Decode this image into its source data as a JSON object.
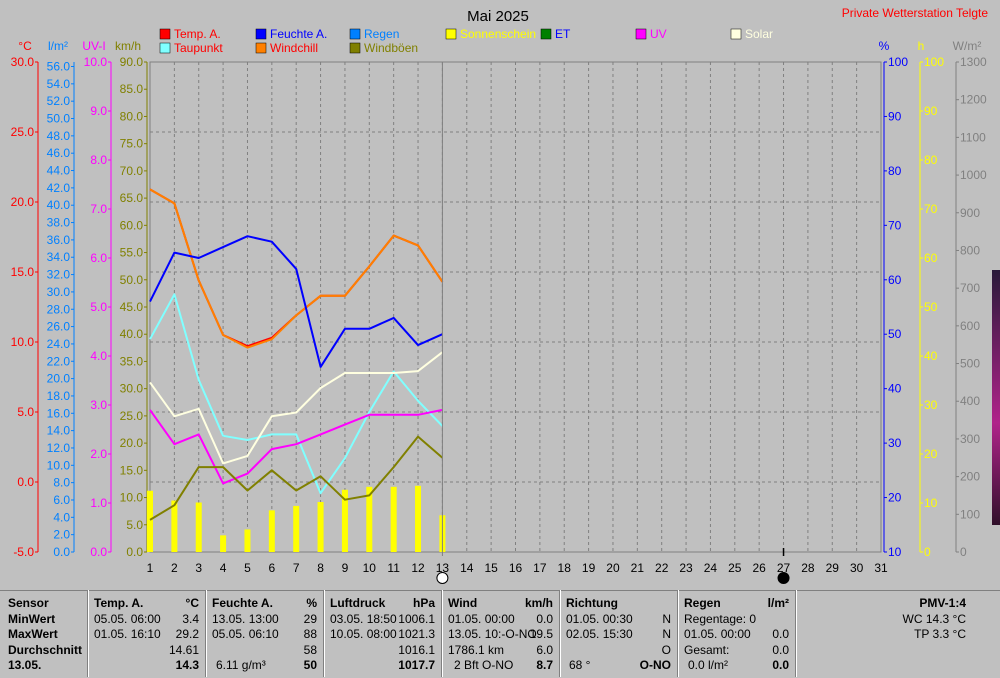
{
  "title": "Mai 2025",
  "station": "Private Wetterstation Telgte",
  "legend": [
    {
      "label": "Temp. A.",
      "color": "#ff0000",
      "text_color": "#ff0000"
    },
    {
      "label": "Feuchte A.",
      "color": "#0000ff",
      "text_color": "#0000ff"
    },
    {
      "label": "Regen",
      "color": "#0080ff",
      "text_color": "#0080ff"
    },
    {
      "label": "Sonnenschein",
      "color": "#ffff00",
      "text_color": "#ffff00"
    },
    {
      "label": "ET",
      "color": "#008000",
      "text_color": "#0000ff"
    },
    {
      "label": "UV",
      "color": "#ff00ff",
      "text_color": "#ff00ff"
    },
    {
      "label": "Solar",
      "color": "#ffffe0",
      "text_color": "#ffffe0"
    },
    {
      "label": "Taupunkt",
      "color": "#80ffff",
      "text_color": "#ff0000"
    },
    {
      "label": "Windchill",
      "color": "#ff8000",
      "text_color": "#ff0000"
    },
    {
      "label": "Windböen",
      "color": "#808000",
      "text_color": "#808000"
    }
  ],
  "axes": {
    "temp": {
      "unit": "°C",
      "color": "#ff0000",
      "ticks": [
        "30.0",
        "25.0",
        "20.0",
        "15.0",
        "10.0",
        "5.0",
        "0.0",
        "-5.0"
      ]
    },
    "rain": {
      "unit": "l/m²",
      "color": "#0080ff",
      "ticks": [
        "56.0",
        "54.0",
        "52.0",
        "50.0",
        "48.0",
        "46.0",
        "44.0",
        "42.0",
        "40.0",
        "38.0",
        "36.0",
        "34.0",
        "32.0",
        "30.0",
        "28.0",
        "26.0",
        "24.0",
        "22.0",
        "20.0",
        "18.0",
        "16.0",
        "14.0",
        "12.0",
        "10.0",
        "8.0",
        "6.0",
        "4.0",
        "2.0",
        "0.0"
      ]
    },
    "uv": {
      "unit": "UV-I",
      "color": "#ff00ff",
      "ticks": [
        "10.0",
        "9.0",
        "8.0",
        "7.0",
        "6.0",
        "5.0",
        "4.0",
        "3.0",
        "2.0",
        "1.0",
        "0.0"
      ]
    },
    "wind": {
      "unit": "km/h",
      "color": "#808000",
      "ticks": [
        "90.0",
        "85.0",
        "80.0",
        "75.0",
        "70.0",
        "65.0",
        "60.0",
        "55.0",
        "50.0",
        "45.0",
        "40.0",
        "35.0",
        "30.0",
        "25.0",
        "20.0",
        "15.0",
        "10.0",
        "5.0",
        "0.0"
      ]
    },
    "hum": {
      "unit": "%",
      "color": "#0000ff",
      "ticks": [
        "100",
        "90",
        "80",
        "70",
        "60",
        "50",
        "40",
        "30",
        "20",
        "10"
      ]
    },
    "sun": {
      "unit": "h",
      "color": "#ffff00",
      "ticks": [
        "100",
        "90",
        "80",
        "70",
        "60",
        "50",
        "40",
        "30",
        "20",
        "10",
        "0"
      ]
    },
    "solar": {
      "unit": "W/m²",
      "color": "#808080",
      "ticks": [
        "1300",
        "1200",
        "1100",
        "1000",
        "900",
        "800",
        "700",
        "600",
        "500",
        "400",
        "300",
        "200",
        "100",
        "0"
      ]
    }
  },
  "chart_data": {
    "type": "line",
    "x": [
      1,
      2,
      3,
      4,
      5,
      6,
      7,
      8,
      9,
      10,
      11,
      12,
      13
    ],
    "xlim": [
      1,
      31
    ],
    "x_ticks": [
      "1",
      "2",
      "3",
      "4",
      "5",
      "6",
      "7",
      "8",
      "9",
      "10",
      "11",
      "12",
      "13",
      "14",
      "15",
      "16",
      "17",
      "18",
      "19",
      "20",
      "21",
      "22",
      "23",
      "24",
      "25",
      "26",
      "27",
      "28",
      "29",
      "30",
      "31"
    ],
    "series": [
      {
        "name": "Temp. A.",
        "axis": "temp",
        "ylim": [
          -5,
          30
        ],
        "color": "#ff0000",
        "values": [
          20.9,
          19.9,
          14.4,
          10.5,
          9.7,
          10.3,
          11.9,
          13.3,
          13.3,
          15.4,
          17.6,
          16.9,
          14.3
        ]
      },
      {
        "name": "Windchill",
        "axis": "temp",
        "ylim": [
          -5,
          30
        ],
        "color": "#ff8000",
        "values": [
          20.9,
          19.9,
          14.4,
          10.5,
          9.6,
          10.2,
          11.9,
          13.3,
          13.3,
          15.4,
          17.6,
          16.9,
          14.3
        ]
      },
      {
        "name": "Feuchte A.",
        "axis": "hum",
        "ylim": [
          10,
          100
        ],
        "color": "#0000ff",
        "values": [
          56,
          65,
          64,
          66,
          68,
          67,
          62,
          44,
          51,
          51,
          53,
          48,
          50
        ]
      },
      {
        "name": "Taupunkt",
        "axis": "temp",
        "ylim": [
          -5,
          30
        ],
        "color": "#80ffff",
        "values": [
          10.2,
          13.4,
          7.3,
          3.3,
          3.0,
          3.4,
          3.4,
          -0.8,
          1.7,
          5.0,
          7.9,
          5.8,
          4.0
        ]
      },
      {
        "name": "UV",
        "axis": "uv",
        "ylim": [
          0,
          10
        ],
        "color": "#ff00ff",
        "values": [
          2.9,
          2.2,
          2.4,
          1.4,
          1.6,
          2.1,
          2.2,
          2.4,
          2.6,
          2.8,
          2.8,
          2.8,
          2.9
        ]
      },
      {
        "name": "Solar",
        "axis": "solar",
        "ylim": [
          0,
          1300
        ],
        "color": "#ffffe0",
        "values": [
          450,
          360,
          380,
          235,
          255,
          360,
          370,
          435,
          475,
          475,
          475,
          480,
          530
        ]
      },
      {
        "name": "Windböen",
        "axis": "wind",
        "ylim": [
          0,
          90
        ],
        "color": "#808000",
        "values": [
          5.9,
          8.6,
          15.6,
          15.6,
          11.3,
          15.0,
          11.3,
          13.9,
          9.6,
          10.4,
          15.6,
          21.2,
          17.3
        ]
      },
      {
        "name": "Sonnenschein",
        "axis": "sun",
        "ylim": [
          0,
          100
        ],
        "type": "bar",
        "color": "#ffff00",
        "values": [
          12.5,
          10.5,
          10.1,
          3.4,
          4.6,
          8.5,
          9.4,
          10.2,
          12.7,
          13.3,
          13.3,
          13.5,
          7.5
        ]
      }
    ]
  },
  "markers": {
    "current_day": "13",
    "moon_day": "27"
  },
  "stats": {
    "sensor": {
      "header": "Sensor",
      "rows": [
        "MinWert",
        "MaxWert",
        "Durchschnitt",
        "13.05."
      ]
    },
    "temp": {
      "header": "Temp. A.",
      "unit": "°C",
      "rows": [
        [
          "05.05.  06:00",
          "3.4"
        ],
        [
          "01.05.  16:10",
          "29.2"
        ],
        [
          "",
          "14.61"
        ],
        [
          "",
          "14.3"
        ]
      ]
    },
    "hum": {
      "header": "Feuchte A.",
      "unit": "%",
      "rows": [
        [
          "13.05.  13:00",
          "29"
        ],
        [
          "05.05.  06:10",
          "88"
        ],
        [
          "",
          "58"
        ],
        [
          "6.11 g/m³",
          "50"
        ]
      ]
    },
    "press": {
      "header": "Luftdruck",
      "unit": "hPa",
      "rows": [
        [
          "03.05.  18:50",
          "1006.1"
        ],
        [
          "10.05.  08:00",
          "1021.3"
        ],
        [
          "",
          "1016.1"
        ],
        [
          "",
          "1017.7"
        ]
      ]
    },
    "wind": {
      "header": "Wind",
      "unit": "km/h",
      "rows": [
        [
          "01.05.  00:00",
          "0.0"
        ],
        [
          "13.05.  10:-O-NO",
          "19.5"
        ],
        [
          "1786.1 km",
          "6.0"
        ],
        [
          "2 Bft O-NO",
          "8.7"
        ]
      ]
    },
    "dir": {
      "header": "Richtung",
      "rows": [
        [
          "01.05.  00:30",
          "N"
        ],
        [
          "02.05.  15:30",
          "N"
        ],
        [
          "",
          "O"
        ],
        [
          "68 °",
          "O-NO"
        ]
      ]
    },
    "rain": {
      "header": "Regen",
      "unit": "l/m²",
      "rows": [
        [
          "Regentage: 0",
          ""
        ],
        [
          "01.05.  00:00",
          "0.0"
        ],
        [
          "Gesamt:",
          "0.0"
        ],
        [
          "0.0 l/m²",
          "0.0"
        ]
      ]
    },
    "pmv": {
      "header": "PMV-1:4",
      "rows": [
        "WC 14.3 °C",
        "TP 3.3 °C"
      ]
    }
  }
}
